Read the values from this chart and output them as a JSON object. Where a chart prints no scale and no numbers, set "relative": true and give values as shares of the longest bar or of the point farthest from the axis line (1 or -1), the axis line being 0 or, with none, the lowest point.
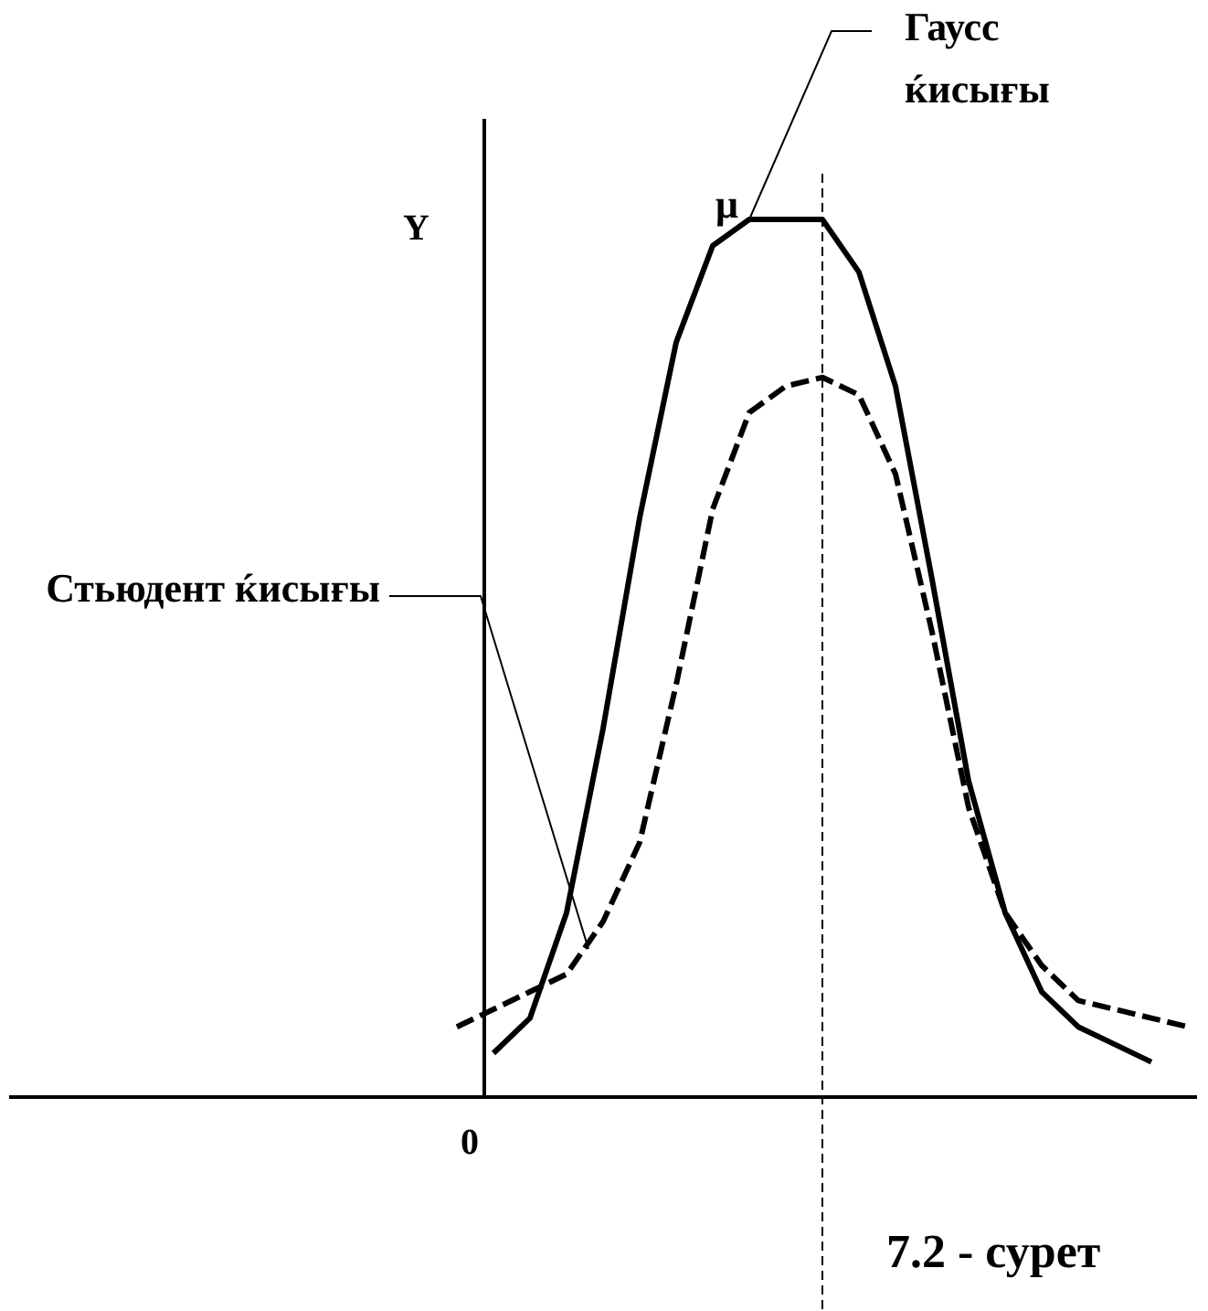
{
  "chart_data": {
    "type": "line",
    "relative": true,
    "ylabel": "Y",
    "categories": [
      null,
      null,
      null,
      null,
      null,
      null,
      null,
      null,
      null,
      null,
      null,
      null,
      null,
      null,
      null,
      null,
      null,
      null,
      null,
      null,
      null
    ],
    "series": [
      {
        "name": "Гаусс ќисығы",
        "color": "#000000",
        "line_style": "solid",
        "values": [
          null,
          0.05,
          0.09,
          0.21,
          0.42,
          0.66,
          0.86,
          0.97,
          1.0,
          1.0,
          1.0,
          0.94,
          0.81,
          0.59,
          0.36,
          0.21,
          0.12,
          0.08,
          0.06,
          0.04,
          null
        ]
      },
      {
        "name": "Стьюдент ќисығы",
        "color": "#000000",
        "line_style": "dashed",
        "values": [
          0.08,
          0.1,
          0.12,
          0.14,
          0.2,
          0.29,
          0.47,
          0.67,
          0.78,
          0.81,
          0.82,
          0.8,
          0.71,
          0.53,
          0.33,
          0.21,
          0.15,
          0.11,
          0.1,
          0.09,
          0.08
        ]
      }
    ],
    "annotations": [
      "μ",
      "0",
      "7.2 - сурет"
    ]
  }
}
